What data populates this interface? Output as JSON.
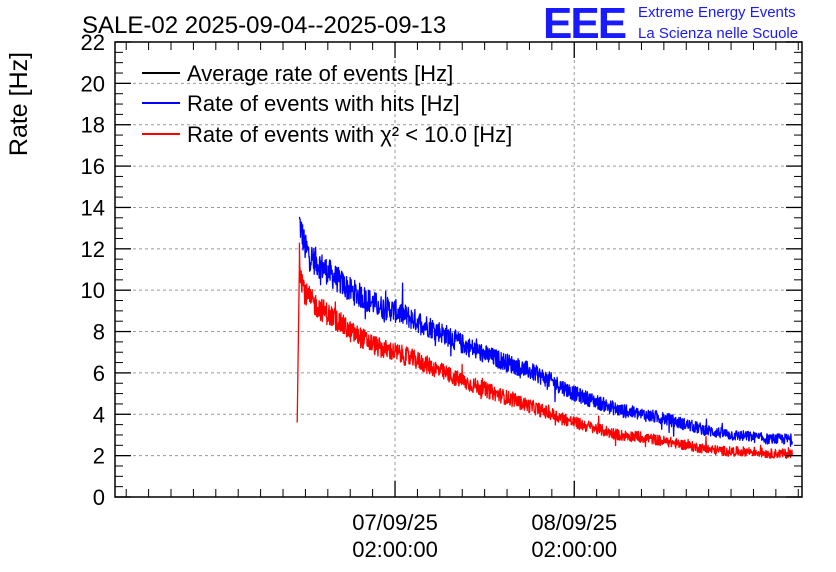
{
  "logo": {
    "letters": "EEE",
    "line1": "Extreme Energy Events",
    "line2": "La Scienza nelle Scuole",
    "color": "#1a1aff"
  },
  "chart_data": {
    "type": "line",
    "title": "SALE-02 2025-09-04--2025-09-13",
    "ylabel": "Rate [Hz]",
    "xlabel": "",
    "ylim": [
      0,
      22
    ],
    "yticks": [
      0,
      2,
      4,
      6,
      8,
      10,
      12,
      14,
      16,
      18,
      20,
      22
    ],
    "xlim_hours": [
      -37.5,
      54.5
    ],
    "xtick_labels": [
      {
        "hours": 0,
        "date": "07/09/25",
        "time": "02:00:00"
      },
      {
        "hours": 24,
        "date": "08/09/25",
        "time": "02:00:00"
      }
    ],
    "grid": true,
    "legend_position": "top-left",
    "series": [
      {
        "name": "Average rate of events [Hz]",
        "color": "#000000",
        "x_hours": [],
        "values": []
      },
      {
        "name": "Rate of events with hits [Hz]",
        "color": "#0000ff",
        "x_hours": [
          -12.8,
          -12.5,
          -12,
          -11,
          -10,
          -8,
          -6,
          -4,
          -2,
          0,
          3,
          6,
          9,
          12,
          15,
          18,
          21,
          24,
          27,
          30,
          33,
          36,
          39,
          42,
          45,
          48,
          50,
          52,
          53.2
        ],
        "values": [
          13.3,
          12.8,
          12.0,
          11.5,
          11.2,
          10.6,
          10.0,
          9.6,
          9.2,
          9.0,
          8.5,
          8.0,
          7.4,
          6.9,
          6.5,
          6.1,
          5.6,
          5.0,
          4.6,
          4.2,
          4.0,
          3.8,
          3.5,
          3.2,
          3.0,
          2.9,
          2.8,
          2.8,
          2.8
        ]
      },
      {
        "name": "Rate of events with χ² < 10.0 [Hz]",
        "color": "#ff0000",
        "x_hours": [
          -12.8,
          -12.5,
          -12,
          -11,
          -10,
          -8,
          -6,
          -4,
          -2,
          0,
          3,
          6,
          9,
          12,
          15,
          18,
          21,
          24,
          27,
          30,
          33,
          36,
          39,
          42,
          45,
          48,
          50,
          52,
          53.2
        ],
        "values": [
          11.4,
          10.6,
          9.8,
          9.4,
          9.1,
          8.6,
          8.0,
          7.6,
          7.2,
          7.0,
          6.6,
          6.1,
          5.6,
          5.2,
          4.8,
          4.4,
          4.0,
          3.6,
          3.3,
          3.0,
          2.9,
          2.7,
          2.5,
          2.3,
          2.2,
          2.2,
          2.1,
          2.1,
          2.1
        ]
      }
    ],
    "annotations": [
      {
        "series": 2,
        "hours": -13.1,
        "value": 3.6,
        "label": ""
      }
    ]
  }
}
